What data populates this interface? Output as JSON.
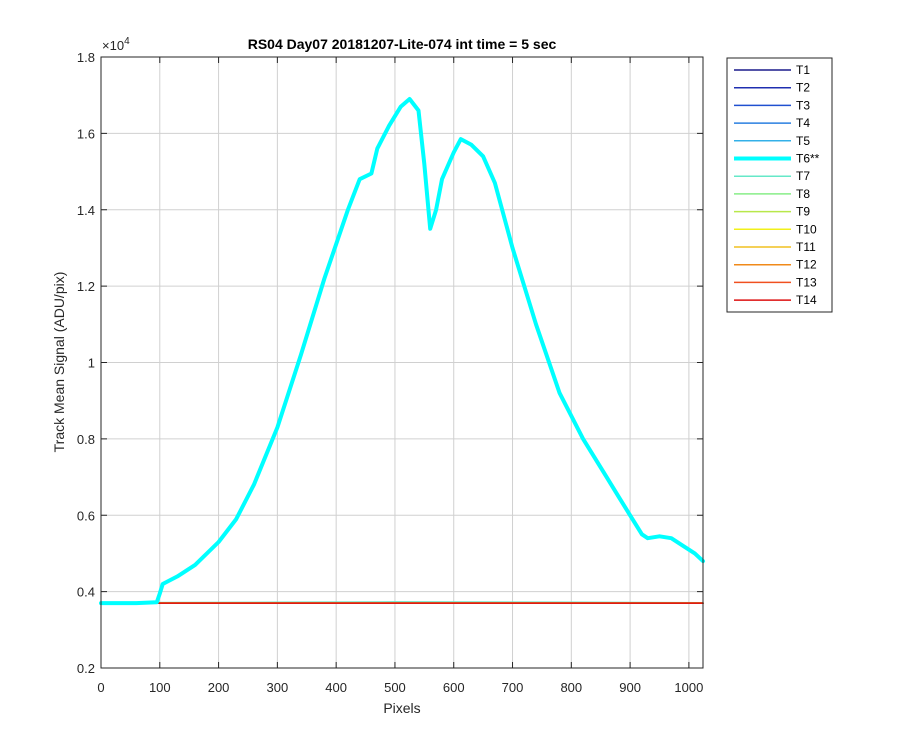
{
  "chart_data": {
    "type": "line",
    "title": "RS04 Day07 20181207-Lite-074 int time = 5 sec",
    "xlabel": "Pixels",
    "ylabel": "Track Mean Signal (ADU/pix)",
    "exponent_label": "×10",
    "exponent_power": "4",
    "xlim": [
      0,
      1024
    ],
    "ylim": [
      2000,
      18000
    ],
    "xticks": [
      0,
      100,
      200,
      300,
      400,
      500,
      600,
      700,
      800,
      900,
      1000
    ],
    "xtick_labels": [
      "0",
      "100",
      "200",
      "300",
      "400",
      "500",
      "600",
      "700",
      "800",
      "900",
      "1000"
    ],
    "yticks": [
      2000,
      4000,
      6000,
      8000,
      10000,
      12000,
      14000,
      16000,
      18000
    ],
    "ytick_labels": [
      "0.2",
      "0.4",
      "0.6",
      "0.8",
      "1",
      "1.2",
      "1.4",
      "1.6",
      "1.8"
    ],
    "grid": true,
    "legend_position": "outside-top-right",
    "series": [
      {
        "name": "T1",
        "color": "#1a1a8c",
        "width": 1.5,
        "x": [
          0,
          1024
        ],
        "y": [
          3700,
          3700
        ]
      },
      {
        "name": "T2",
        "color": "#1f2fb0",
        "width": 1.5,
        "x": [
          0,
          1024
        ],
        "y": [
          3700,
          3700
        ]
      },
      {
        "name": "T3",
        "color": "#2050d0",
        "width": 1.5,
        "x": [
          0,
          1024
        ],
        "y": [
          3700,
          3700
        ]
      },
      {
        "name": "T4",
        "color": "#2a7fe0",
        "width": 1.5,
        "x": [
          0,
          1024
        ],
        "y": [
          3700,
          3700
        ]
      },
      {
        "name": "T5",
        "color": "#33b0e8",
        "width": 1.5,
        "x": [
          0,
          1024
        ],
        "y": [
          3700,
          3700
        ]
      },
      {
        "name": "T6**",
        "color": "#00ffff",
        "width": 4,
        "x": [
          0,
          60,
          95,
          100,
          105,
          130,
          160,
          200,
          230,
          260,
          300,
          340,
          380,
          420,
          440,
          460,
          470,
          490,
          510,
          525,
          540,
          550,
          560,
          570,
          580,
          600,
          612,
          630,
          650,
          670,
          700,
          740,
          780,
          820,
          860,
          880,
          900,
          920,
          930,
          950,
          970,
          990,
          1010,
          1024
        ],
        "y": [
          3700,
          3700,
          3720,
          3950,
          4200,
          4400,
          4700,
          5300,
          5900,
          6800,
          8300,
          10200,
          12200,
          14000,
          14800,
          14950,
          15600,
          16200,
          16700,
          16900,
          16600,
          15200,
          13500,
          14000,
          14800,
          15500,
          15850,
          15700,
          15400,
          14700,
          13000,
          11000,
          9200,
          8000,
          7000,
          6500,
          6000,
          5500,
          5400,
          5450,
          5400,
          5200,
          5000,
          4800
        ]
      },
      {
        "name": "T7",
        "color": "#66e8c8",
        "width": 1.5,
        "x": [
          0,
          300,
          500,
          800,
          1024
        ],
        "y": [
          3710,
          3720,
          3730,
          3720,
          3710
        ]
      },
      {
        "name": "T8",
        "color": "#88ee88",
        "width": 1.5,
        "x": [
          0,
          1024
        ],
        "y": [
          3705,
          3705
        ]
      },
      {
        "name": "T9",
        "color": "#b8e84a",
        "width": 1.5,
        "x": [
          0,
          1024
        ],
        "y": [
          3700,
          3700
        ]
      },
      {
        "name": "T10",
        "color": "#f2f01a",
        "width": 1.5,
        "x": [
          0,
          1024
        ],
        "y": [
          3700,
          3700
        ]
      },
      {
        "name": "T11",
        "color": "#f0c020",
        "width": 1.5,
        "x": [
          0,
          1024
        ],
        "y": [
          3700,
          3700
        ]
      },
      {
        "name": "T12",
        "color": "#f08a1a",
        "width": 1.5,
        "x": [
          0,
          1024
        ],
        "y": [
          3700,
          3700
        ]
      },
      {
        "name": "T13",
        "color": "#f05020",
        "width": 1.5,
        "x": [
          0,
          1024
        ],
        "y": [
          3700,
          3700
        ]
      },
      {
        "name": "T14",
        "color": "#dd1111",
        "width": 1.5,
        "x": [
          0,
          1024
        ],
        "y": [
          3700,
          3700
        ]
      }
    ]
  }
}
